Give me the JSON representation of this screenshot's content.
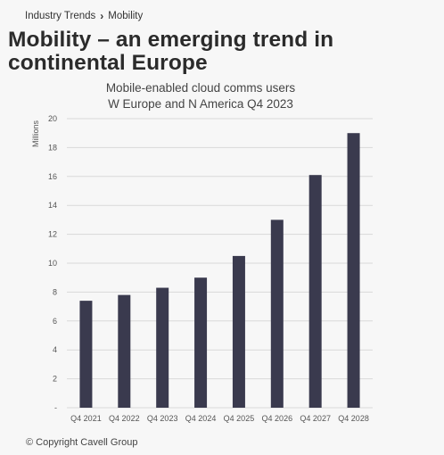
{
  "breadcrumb": {
    "parent": "Industry Trends",
    "separator": "›",
    "current": "Mobility"
  },
  "page_title": "Mobility – an emerging trend in continental Europe",
  "footer": "© Copyright Cavell Group",
  "colors": {
    "bar": "#3a3a4e",
    "grid": "#d9d9d9",
    "background": "#f7f7f7"
  },
  "chart_data": {
    "type": "bar",
    "title": "Mobile-enabled cloud comms users",
    "subtitle": "W Europe and N America Q4 2023",
    "ylabel": "Millions",
    "xlabel": "",
    "ylim": [
      0,
      20
    ],
    "yticks": [
      0,
      2,
      4,
      6,
      8,
      10,
      12,
      14,
      16,
      18,
      20
    ],
    "ytick_labels": [
      "-",
      "2",
      "4",
      "6",
      "8",
      "10",
      "12",
      "14",
      "16",
      "18",
      "20"
    ],
    "grid": true,
    "categories": [
      "Q4 2021",
      "Q4 2022",
      "Q4 2023",
      "Q4 2024",
      "Q4 2025",
      "Q4 2026",
      "Q4 2027",
      "Q4 2028"
    ],
    "values": [
      7.4,
      7.8,
      8.3,
      9.0,
      10.5,
      13.0,
      16.1,
      19.0
    ]
  }
}
